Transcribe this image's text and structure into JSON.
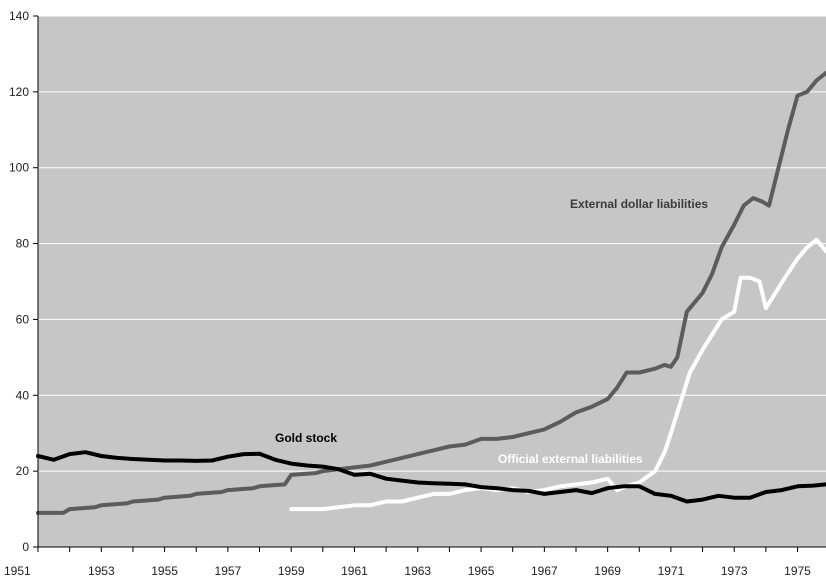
{
  "chart_data": {
    "type": "line",
    "title": "",
    "xlabel": "",
    "ylabel": "",
    "xlim": [
      1951,
      1975.9
    ],
    "ylim": [
      0,
      140
    ],
    "grid": "horizontal",
    "y_ticks": [
      0,
      20,
      40,
      60,
      80,
      100,
      120,
      140
    ],
    "x_ticks": [
      1951,
      1953,
      1955,
      1957,
      1959,
      1961,
      1963,
      1965,
      1967,
      1969,
      1971,
      1973,
      1975
    ],
    "colors": {
      "background": "#c6c6c6",
      "gridline": "#ffffff",
      "axis": "#000000"
    },
    "series": [
      {
        "key": "gold",
        "color": "#000000",
        "x": [
          1951,
          1951.5,
          1952,
          1952.5,
          1953,
          1953.5,
          1954,
          1954.5,
          1955,
          1955.5,
          1956,
          1956.5,
          1957,
          1957.5,
          1958,
          1958.5,
          1959,
          1959.5,
          1960,
          1960.5,
          1961,
          1961.5,
          1962,
          1962.5,
          1963,
          1963.5,
          1964,
          1964.5,
          1965,
          1965.5,
          1966,
          1966.5,
          1967,
          1967.5,
          1968,
          1968.5,
          1969,
          1969.5,
          1970,
          1970.5,
          1971,
          1971.5,
          1972,
          1972.5,
          1973,
          1973.5,
          1974,
          1974.5,
          1975,
          1975.5,
          1975.9
        ],
        "y": [
          24,
          23,
          24.5,
          25,
          24,
          23.5,
          23.2,
          23,
          22.8,
          22.8,
          22.7,
          22.8,
          23.8,
          24.5,
          24.6,
          23,
          22,
          21.5,
          21.2,
          20.5,
          19,
          19.3,
          18,
          17.5,
          17,
          16.8,
          16.7,
          16.5,
          15.8,
          15.5,
          15,
          14.8,
          14,
          14.5,
          15,
          14.2,
          15.5,
          16,
          16,
          14,
          13.5,
          12,
          12.5,
          13.5,
          13,
          13,
          14.5,
          15,
          16,
          16.2,
          16.5
        ]
      },
      {
        "key": "external",
        "color": "#5c5c5c",
        "x": [
          1951,
          1951.8,
          1952,
          1952.8,
          1953,
          1953.8,
          1954,
          1954.8,
          1955,
          1955.8,
          1956,
          1956.8,
          1957,
          1957.8,
          1958,
          1958.8,
          1959,
          1959.8,
          1960,
          1960.5,
          1961,
          1961.5,
          1962,
          1962.5,
          1963,
          1963.5,
          1964,
          1964.5,
          1965,
          1965.5,
          1966,
          1966.5,
          1967,
          1967.5,
          1968,
          1968.5,
          1969,
          1969.3,
          1969.6,
          1970,
          1970.5,
          1970.8,
          1971,
          1971.2,
          1971.5,
          1972,
          1972.3,
          1972.6,
          1973,
          1973.3,
          1973.6,
          1973.9,
          1974.1,
          1974.4,
          1974.7,
          1975,
          1975.3,
          1975.6,
          1975.9
        ],
        "y": [
          9,
          9,
          10,
          10.5,
          11,
          11.5,
          12,
          12.5,
          13,
          13.5,
          14,
          14.5,
          15,
          15.5,
          16,
          16.5,
          19,
          19.5,
          20,
          20.5,
          21,
          21.5,
          22.5,
          23.5,
          24.5,
          25.5,
          26.5,
          27,
          28.5,
          28.5,
          29,
          30,
          31,
          33,
          35.5,
          37,
          39,
          42,
          46,
          46,
          47,
          48,
          47.5,
          50,
          62,
          67,
          72,
          79,
          85,
          90,
          92,
          91,
          90,
          100,
          110,
          119,
          120,
          123,
          125
        ]
      },
      {
        "key": "official",
        "color": "#ffffff",
        "x": [
          1959,
          1959.5,
          1960,
          1960.5,
          1961,
          1961.5,
          1962,
          1962.5,
          1963,
          1963.5,
          1964,
          1964.5,
          1965,
          1965.5,
          1966,
          1966.5,
          1967,
          1967.5,
          1968,
          1968.5,
          1969,
          1969.3,
          1969.6,
          1970,
          1970.5,
          1970.8,
          1971,
          1971.3,
          1971.6,
          1972,
          1972.3,
          1972.6,
          1973,
          1973.2,
          1973.5,
          1973.8,
          1974,
          1974.3,
          1974.6,
          1975,
          1975.3,
          1975.6,
          1975.9
        ],
        "y": [
          10,
          10,
          10,
          10.5,
          11,
          11,
          12,
          12,
          13,
          14,
          14,
          15,
          15.5,
          15,
          15.5,
          14.5,
          15,
          16,
          16.5,
          17,
          18,
          15,
          16,
          17,
          20,
          25,
          30,
          38,
          46,
          52,
          56,
          60,
          62,
          71,
          71,
          70,
          63,
          67,
          71,
          76,
          79,
          81,
          78
        ]
      }
    ],
    "annotations": {
      "external_label": "External dollar liabilities",
      "gold_label": "Gold stock",
      "official_label": "Official external liabilities"
    }
  }
}
